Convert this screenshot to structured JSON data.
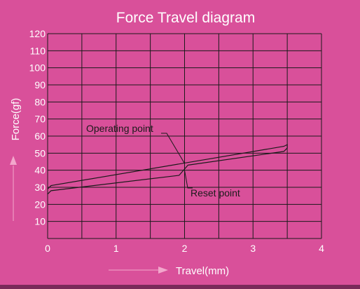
{
  "chart_data": {
    "type": "line",
    "title": "Force Travel diagram",
    "xlabel": "Travel(mm)",
    "ylabel": "Force(gf)",
    "xlim": [
      0,
      4
    ],
    "ylim": [
      0,
      120
    ],
    "x_ticks": [
      0,
      1,
      2,
      3,
      4
    ],
    "y_ticks": [
      10,
      20,
      30,
      40,
      50,
      60,
      70,
      80,
      90,
      100,
      110,
      120
    ],
    "grid": true,
    "series": [
      {
        "name": "",
        "x": [
          0,
          0.05,
          3.45,
          3.5,
          3.5
        ],
        "y": [
          29,
          31,
          54,
          55,
          53
        ]
      },
      {
        "name": "",
        "x": [
          0,
          0.05,
          1.92,
          2.05
        ],
        "y": [
          26,
          28,
          37,
          43
        ]
      },
      {
        "name": "",
        "x": [
          2.05,
          3.45,
          3.5
        ],
        "y": [
          43,
          51,
          53
        ]
      }
    ],
    "annotations": [
      {
        "text": "Operating point",
        "x": 2.0,
        "y": 44
      },
      {
        "text": "Reset point",
        "x": 2.0,
        "y": 40
      }
    ],
    "colors": {
      "background": "#d9509a",
      "ink": "#1a1a1a",
      "text_light": "#ffffff",
      "arrow": "#f2a7cc"
    }
  }
}
